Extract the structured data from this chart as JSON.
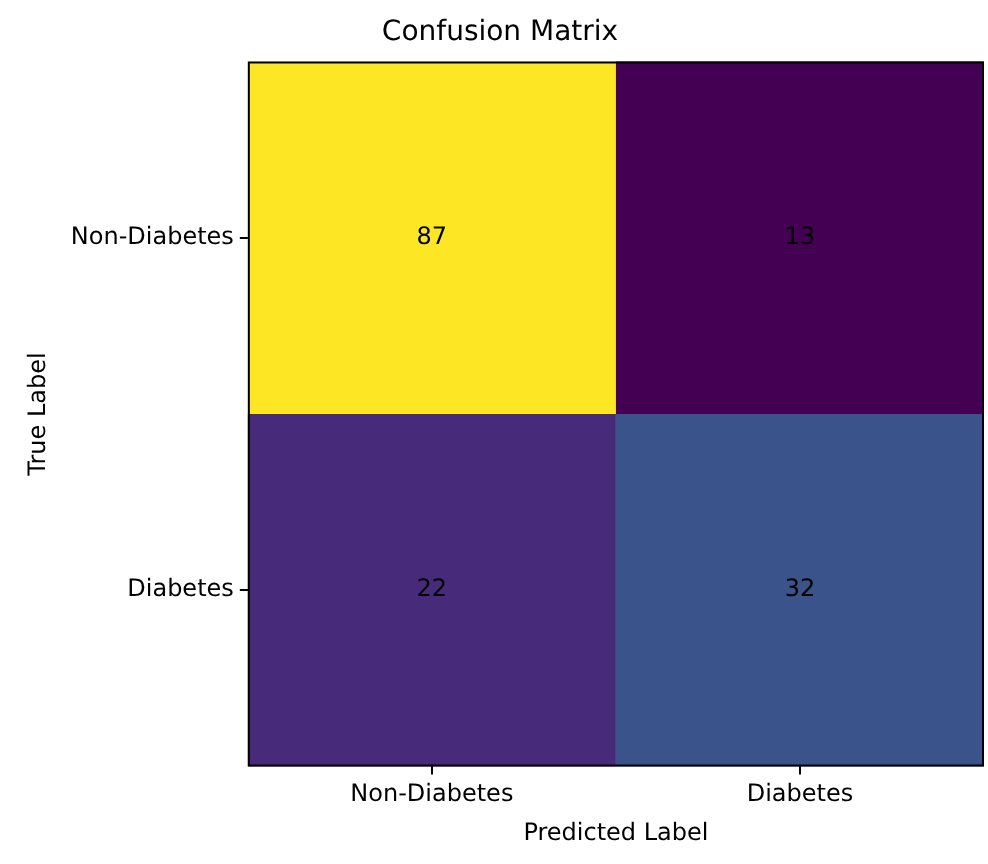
{
  "chart_data": {
    "type": "heatmap",
    "title": "Confusion Matrix",
    "xlabel": "Predicted Label",
    "ylabel": "True Label",
    "categories": [
      "Non-Diabetes",
      "Diabetes"
    ],
    "y_categories": [
      "Non-Diabetes",
      "Diabetes"
    ],
    "cells": [
      [
        87,
        13
      ],
      [
        22,
        32
      ]
    ],
    "data_labels": true,
    "grid": false,
    "legend": false
  }
}
